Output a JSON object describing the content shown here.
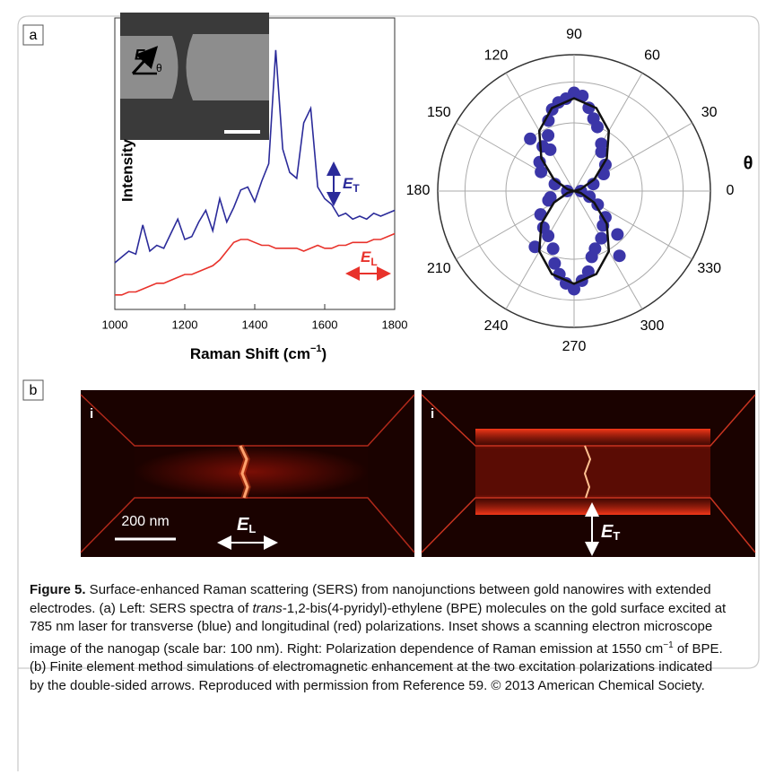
{
  "panel_a": {
    "label": "a"
  },
  "chart_data": [
    {
      "type": "line",
      "ylabel": "Intensity",
      "xlabel": "Raman Shift (cm",
      "xlabel_sup": "−1",
      "xlabel_end": ")",
      "x": [
        1000,
        1020,
        1040,
        1060,
        1080,
        1100,
        1120,
        1140,
        1160,
        1180,
        1200,
        1220,
        1240,
        1260,
        1280,
        1300,
        1320,
        1340,
        1360,
        1380,
        1400,
        1420,
        1440,
        1460,
        1480,
        1500,
        1520,
        1540,
        1560,
        1580,
        1600,
        1620,
        1640,
        1660,
        1680,
        1700,
        1720,
        1740,
        1760,
        1780,
        1800
      ],
      "series": [
        {
          "color": "#2b2b9a",
          "values": [
            16,
            18,
            20,
            19,
            29,
            20,
            22,
            21,
            26,
            31,
            24,
            25,
            30,
            34,
            27,
            38,
            30,
            35,
            41,
            42,
            37,
            44,
            50,
            89,
            55,
            47,
            45,
            64,
            69,
            42,
            38,
            36,
            32,
            33,
            31,
            32,
            31,
            33,
            32,
            33,
            34
          ]
        },
        {
          "color": "#e8322b",
          "values": [
            5,
            5,
            6,
            6,
            7,
            8,
            9,
            9,
            10,
            11,
            12,
            12,
            13,
            14,
            15,
            17,
            20,
            23,
            24,
            24,
            23,
            22,
            22,
            21,
            21,
            21,
            21,
            20,
            21,
            22,
            21,
            21,
            22,
            22,
            23,
            23,
            23,
            24,
            24,
            25,
            26
          ]
        }
      ],
      "annotations": [
        {
          "symbol": "E",
          "subscript": "T",
          "color": "#2b2b9a"
        },
        {
          "symbol": "E",
          "subscript": "L",
          "color": "#e8322b"
        }
      ],
      "inset": {
        "symbol": "E",
        "angle": "θ"
      },
      "xlim": [
        1000,
        1800
      ],
      "xticks": [
        1000,
        1200,
        1400,
        1600,
        1800
      ],
      "ylim": [
        0,
        100
      ]
    },
    {
      "type": "polar",
      "axis_label": "θ",
      "thetaticks": [
        0,
        30,
        60,
        90,
        120,
        150,
        180,
        210,
        240,
        270,
        300,
        330
      ],
      "rlim": [
        0,
        1
      ],
      "rticks": [
        0.5,
        0.8,
        1
      ],
      "point_color": "#3b36a8",
      "line_color": "#111111",
      "theta": [
        90,
        85,
        95,
        100,
        80,
        105,
        110,
        75,
        115,
        70,
        120,
        60,
        125,
        140,
        150,
        160,
        30,
        20,
        40,
        55,
        130,
        0,
        180,
        270,
        265,
        275,
        280,
        260,
        255,
        285,
        250,
        290,
        240,
        300,
        230,
        310,
        320,
        330,
        200,
        215,
        340,
        195,
        305,
        235,
        315
      ],
      "r": [
        0.72,
        0.7,
        0.68,
        0.66,
        0.62,
        0.62,
        0.55,
        0.55,
        0.45,
        0.5,
        0.35,
        0.4,
        0.4,
        0.33,
        0.28,
        0.15,
        0.25,
        0.15,
        0.3,
        0.35,
        0.5,
        0.05,
        0.05,
        0.72,
        0.68,
        0.66,
        0.6,
        0.62,
        0.55,
        0.5,
        0.45,
        0.45,
        0.38,
        0.4,
        0.35,
        0.33,
        0.3,
        0.2,
        0.2,
        0.3,
        0.12,
        0.18,
        0.58,
        0.5,
        0.45
      ],
      "fit": {
        "theta": [
          0,
          15,
          30,
          45,
          60,
          75,
          90,
          105,
          120,
          135,
          150,
          165,
          180,
          195,
          210,
          225,
          240,
          255,
          270,
          285,
          300,
          315,
          330,
          345,
          360
        ],
        "r": [
          0,
          0.05,
          0.17,
          0.34,
          0.51,
          0.63,
          0.68,
          0.63,
          0.51,
          0.34,
          0.17,
          0.05,
          0,
          0.05,
          0.17,
          0.34,
          0.51,
          0.63,
          0.68,
          0.63,
          0.51,
          0.34,
          0.17,
          0.05,
          0
        ]
      }
    }
  ],
  "panel_b": {
    "label": "b",
    "left": {
      "tag": "i",
      "scale": "200 nm",
      "symbol": "E",
      "subscript": "L"
    },
    "right": {
      "tag": "i",
      "symbol": "E",
      "subscript": "T"
    }
  },
  "caption": {
    "label": "Figure 5.",
    "text1": " Surface-enhanced Raman scattering (SERS) from nanojunctions between gold nanowires with extended electrodes. (a) Left: SERS spectra of ",
    "italic": "trans",
    "text2": "-1,2-bis(4-pyridyl)-ethylene (BPE) molecules on the gold surface excited at 785 nm laser for transverse (blue) and longitudinal (red) polarizations. Inset shows a scanning electron microscope image of the nanogap (scale bar: 100 nm). Right: Polarization dependence of Raman emission at 1550 cm",
    "sup": "−1",
    "text3": " of BPE. (b) Finite element method simulations of electromagnetic enhancement at the two excitation polarizations indicated by the double-sided arrows. Reproduced with permission from Reference 59. © 2013 American Chemical Society."
  }
}
